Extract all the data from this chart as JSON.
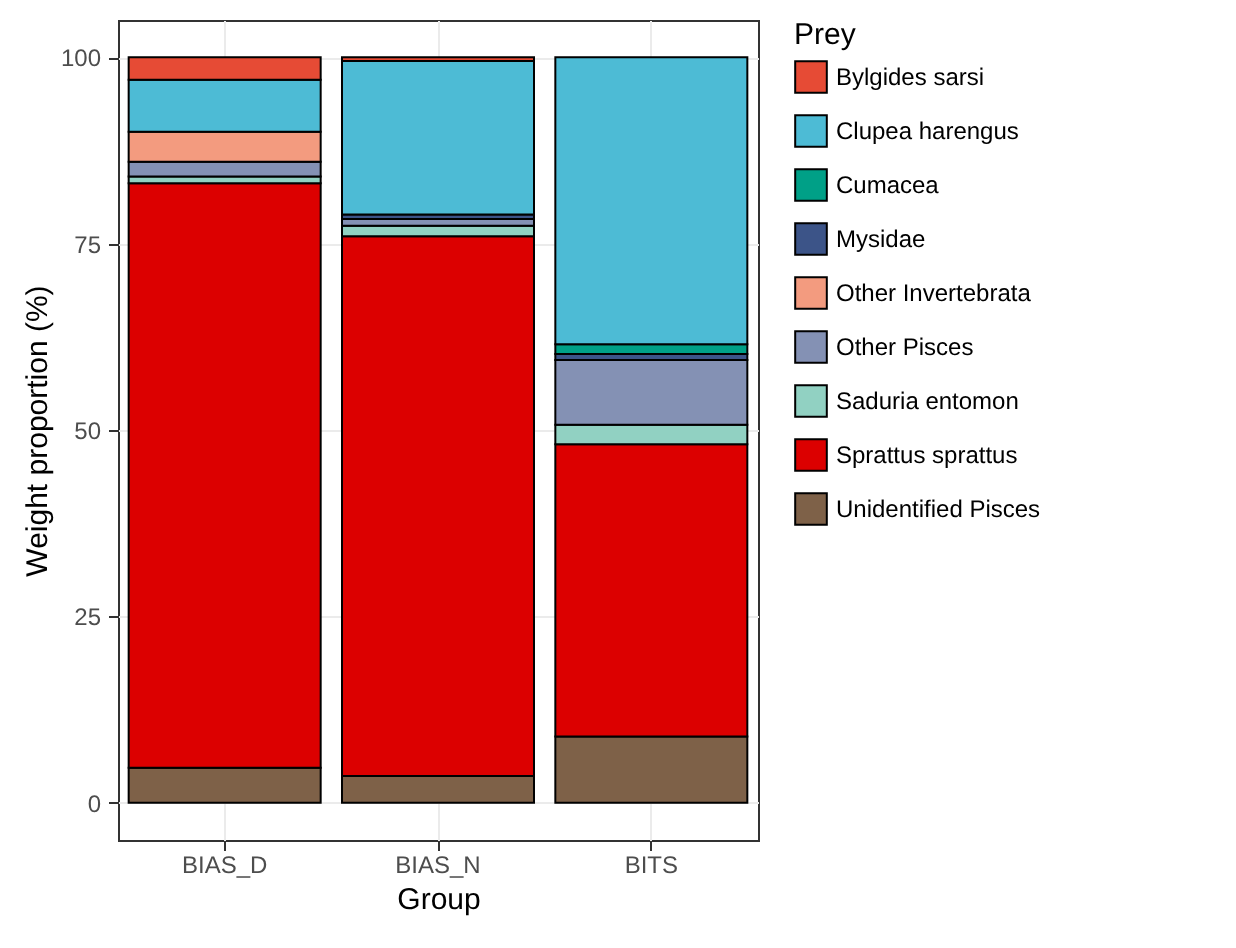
{
  "chart_data": {
    "type": "bar",
    "stacked": true,
    "xlabel": "Group",
    "ylabel": "Weight proportion (%)",
    "legend_title": "Prey",
    "legend": "right",
    "grid": true,
    "categories": [
      "BIAS_D",
      "BIAS_N",
      "BITS"
    ],
    "ylim": [
      -5,
      105
    ],
    "yticks": [
      0,
      25,
      50,
      75,
      100
    ],
    "series": [
      {
        "name": "Unidentified Pisces",
        "color": "#7e6148",
        "values": [
          4.7,
          3.6,
          8.9
        ]
      },
      {
        "name": "Sprattus sprattus",
        "color": "#dc0000",
        "values": [
          78.4,
          72.4,
          39.2
        ]
      },
      {
        "name": "Saduria entomon",
        "color": "#91d1c2",
        "values": [
          0.9,
          1.4,
          2.6
        ]
      },
      {
        "name": "Other Pisces",
        "color": "#8491b4",
        "values": [
          2.0,
          0.9,
          8.7
        ]
      },
      {
        "name": "Other Invertebrata",
        "color": "#f39b7f",
        "values": [
          4.0,
          0,
          0
        ]
      },
      {
        "name": "Mysidae",
        "color": "#3c5488",
        "values": [
          0,
          0.6,
          0.8
        ]
      },
      {
        "name": "Cumacea",
        "color": "#00a087",
        "values": [
          0,
          0,
          1.3
        ]
      },
      {
        "name": "Clupea harengus",
        "color": "#4dbbd5",
        "values": [
          7.0,
          20.6,
          38.5
        ]
      },
      {
        "name": "Bylgides sarsi",
        "color": "#e64b35",
        "values": [
          3.0,
          0.5,
          0
        ]
      }
    ]
  }
}
